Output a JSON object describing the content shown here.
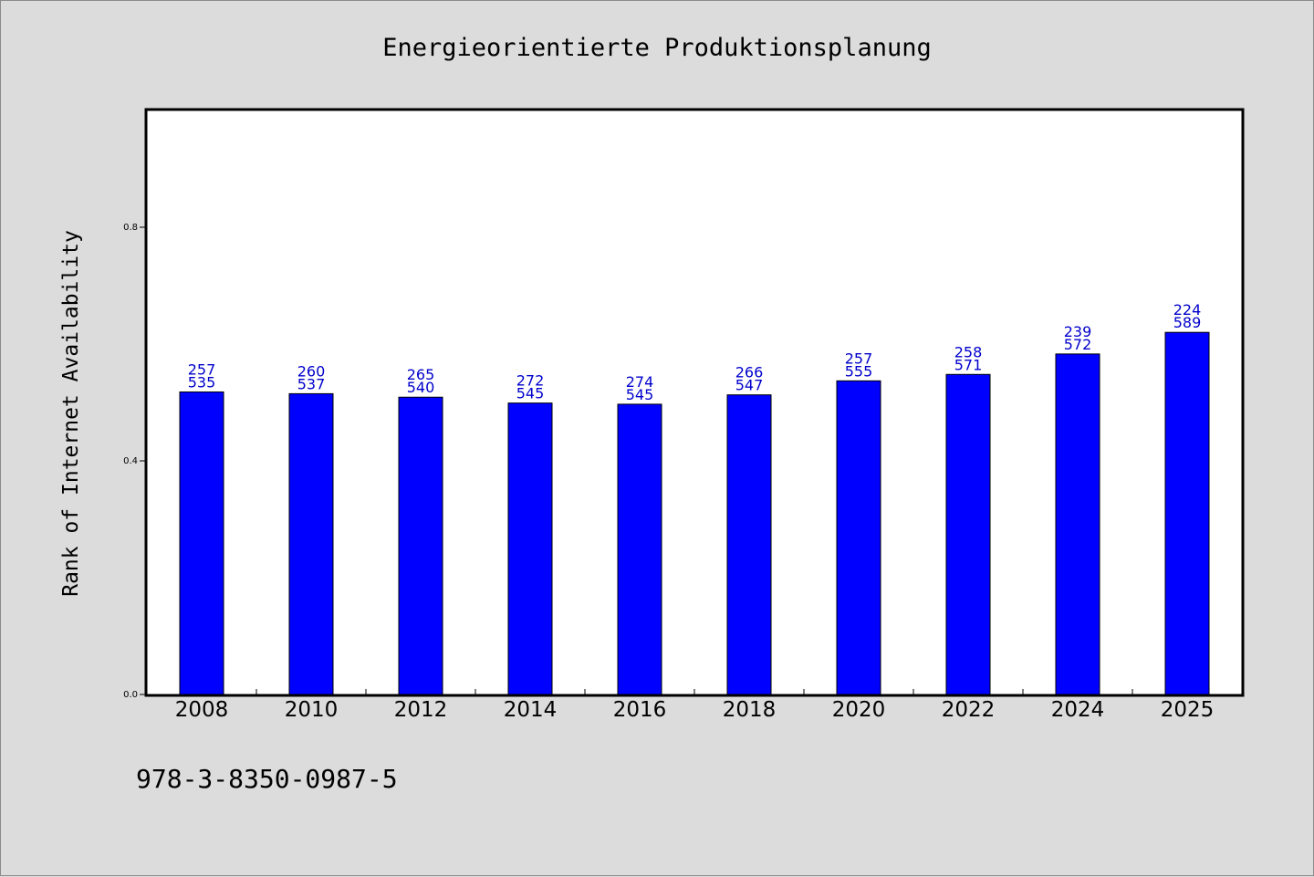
{
  "chart_data": {
    "type": "bar",
    "title": "Energieorientierte Produktionsplanung",
    "xlabel": "",
    "ylabel": "Rank of Internet Availability",
    "ylim": [
      0.0,
      1.0
    ],
    "yticks": [
      "0.0",
      "0.4",
      "0.8"
    ],
    "ytick_values": [
      0.0,
      0.4,
      0.8
    ],
    "categories": [
      "2008",
      "2010",
      "2012",
      "2014",
      "2016",
      "2018",
      "2020",
      "2022",
      "2024",
      "2025"
    ],
    "values": [
      0.518,
      0.515,
      0.509,
      0.499,
      0.497,
      0.513,
      0.537,
      0.548,
      0.583,
      0.62
    ],
    "labels_top": [
      "257",
      "260",
      "265",
      "272",
      "274",
      "266",
      "257",
      "258",
      "239",
      "224"
    ],
    "labels_bottom": [
      "535",
      "537",
      "540",
      "545",
      "545",
      "547",
      "555",
      "571",
      "572",
      "589"
    ],
    "bar_color": "#0000ff",
    "label_color": "#0000cc",
    "grid": false,
    "legend": "none"
  },
  "footer": {
    "isbn": "978-3-8350-0987-5"
  }
}
